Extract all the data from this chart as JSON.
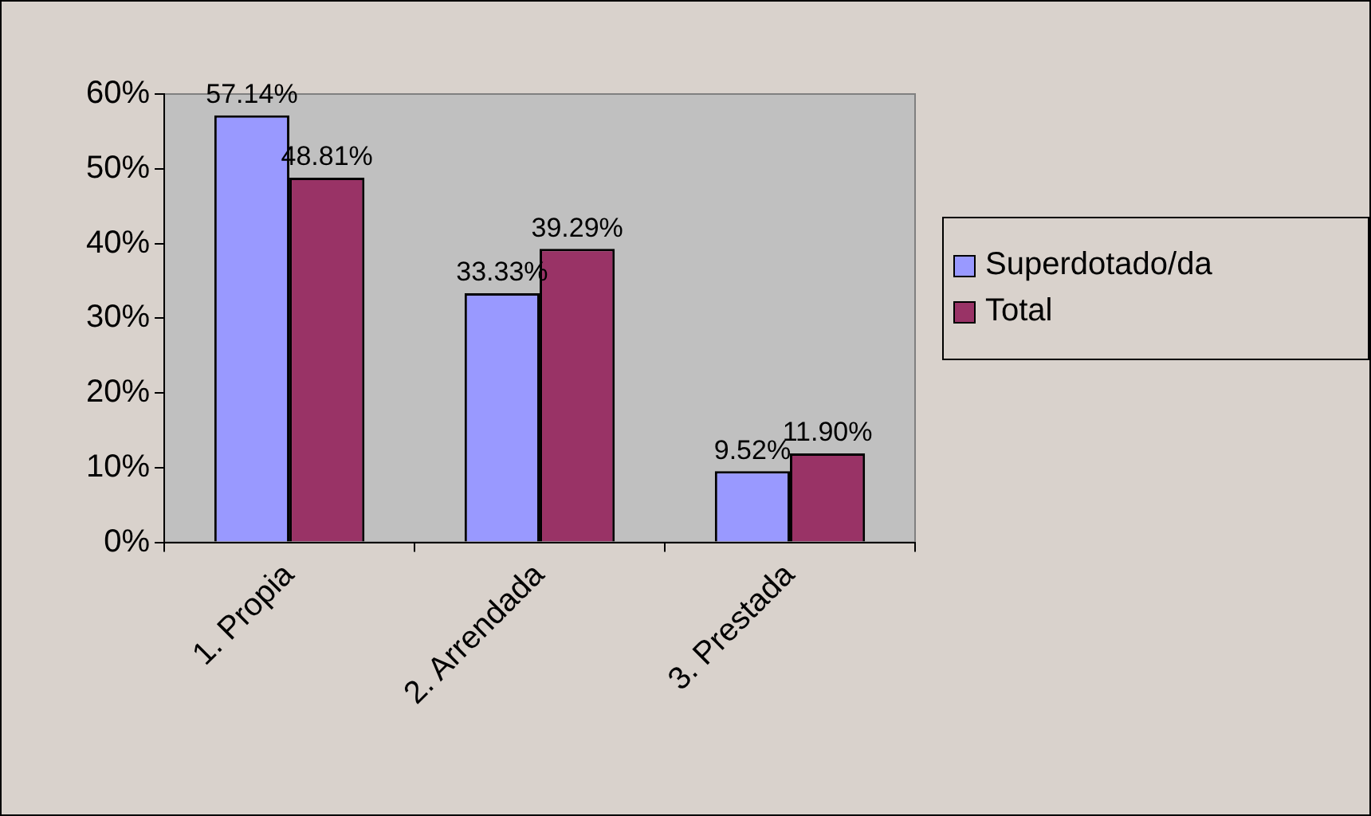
{
  "chart_data": {
    "type": "bar",
    "categories": [
      "1. Propia",
      "2. Arrendada",
      "3. Prestada"
    ],
    "series": [
      {
        "name": "Superdotado/da",
        "color": "#9999ff",
        "values": [
          57.14,
          33.33,
          9.52
        ],
        "value_labels": [
          "57.14%",
          "33.33%",
          "9.52%"
        ]
      },
      {
        "name": "Total",
        "color": "#993366",
        "values": [
          48.81,
          39.29,
          11.9
        ],
        "value_labels": [
          "48.81%",
          "39.29%",
          "11.90%"
        ]
      }
    ],
    "ylim": [
      0,
      60
    ],
    "yticks": [
      {
        "value": 0,
        "label": "0%"
      },
      {
        "value": 10,
        "label": "10%"
      },
      {
        "value": 20,
        "label": "20%"
      },
      {
        "value": 30,
        "label": "30%"
      },
      {
        "value": 40,
        "label": "40%"
      },
      {
        "value": 50,
        "label": "50%"
      },
      {
        "value": 60,
        "label": "60%"
      }
    ],
    "legend": "right"
  }
}
